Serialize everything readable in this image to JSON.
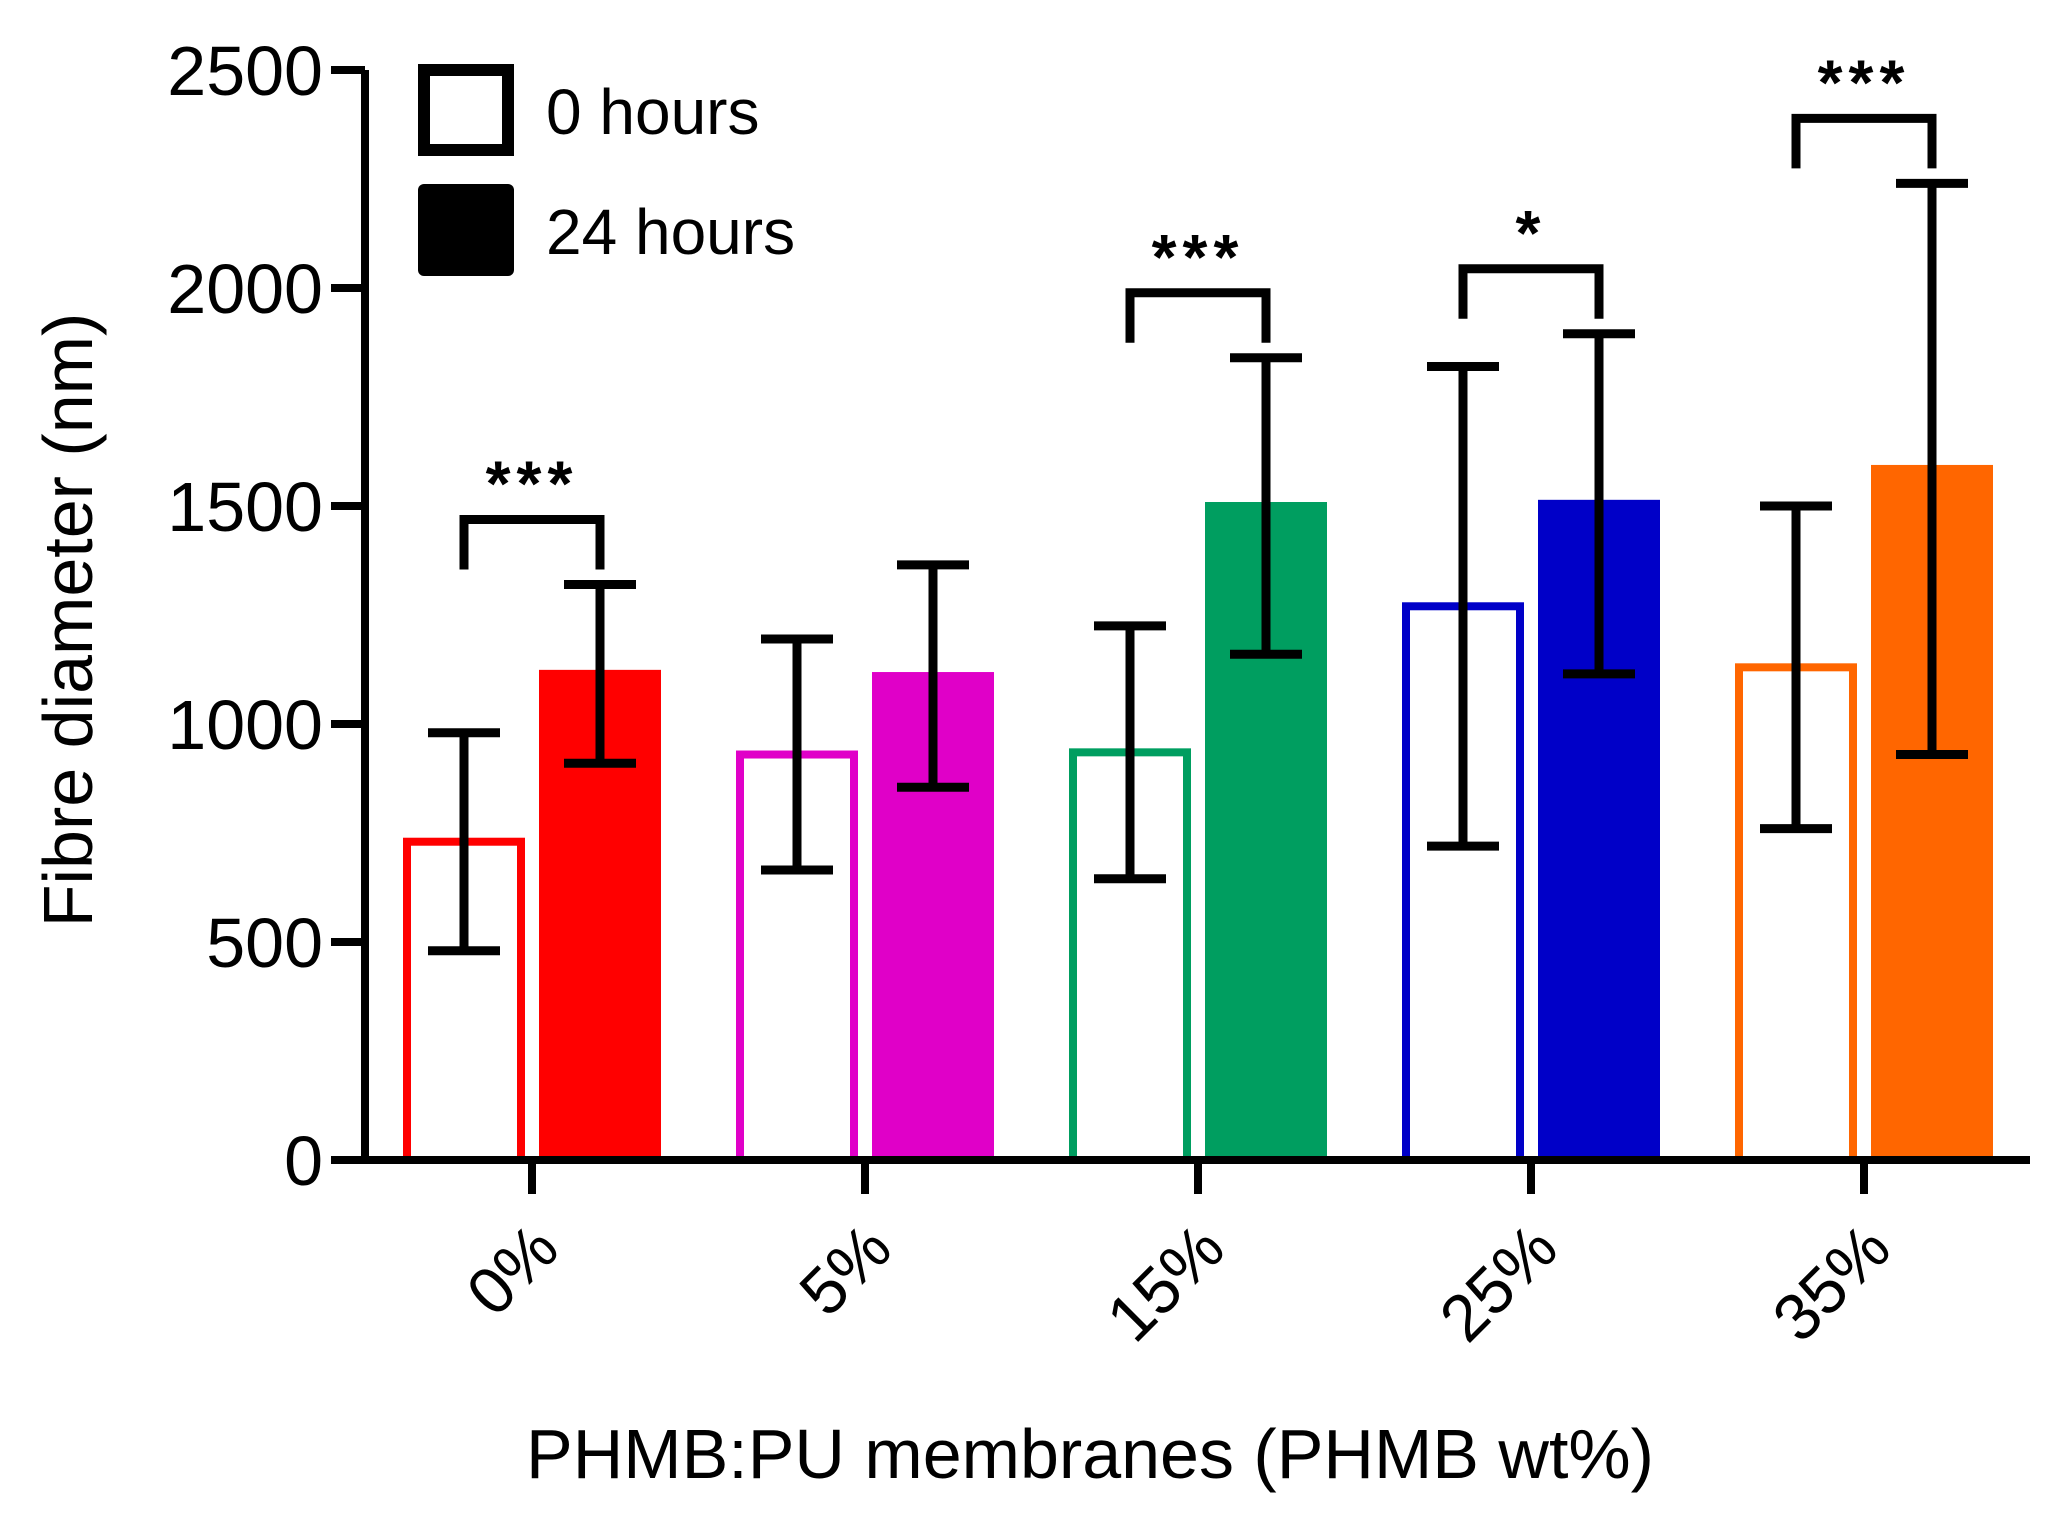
{
  "chart_data": {
    "type": "bar",
    "title": "",
    "xlabel": "PHMB:PU membranes (PHMB wt%)",
    "ylabel": "Fibre diameter  (nm)",
    "ylim": [
      0,
      2500
    ],
    "yticks": [
      0,
      500,
      1000,
      1500,
      2000,
      2500
    ],
    "grid": false,
    "legend_position": "top-left",
    "categories": [
      "0%",
      "5%",
      "15%",
      "25%",
      "35%"
    ],
    "colors": [
      "#ff0000",
      "#e000c8",
      "#009e60",
      "#0000c8",
      "#ff6600"
    ],
    "series": [
      {
        "name": "0 hours",
        "style": "hollow",
        "values": [
          730,
          930,
          935,
          1270,
          1130
        ],
        "error": [
          250,
          265,
          290,
          550,
          370
        ]
      },
      {
        "name": "24 hours",
        "style": "filled",
        "values": [
          1115,
          1110,
          1500,
          1505,
          1585
        ],
        "error": [
          205,
          255,
          340,
          390,
          655
        ]
      }
    ],
    "significance": [
      {
        "category": "0%",
        "label": "***"
      },
      {
        "category": "15%",
        "label": "***"
      },
      {
        "category": "25%",
        "label": "*"
      },
      {
        "category": "35%",
        "label": "***"
      }
    ]
  }
}
